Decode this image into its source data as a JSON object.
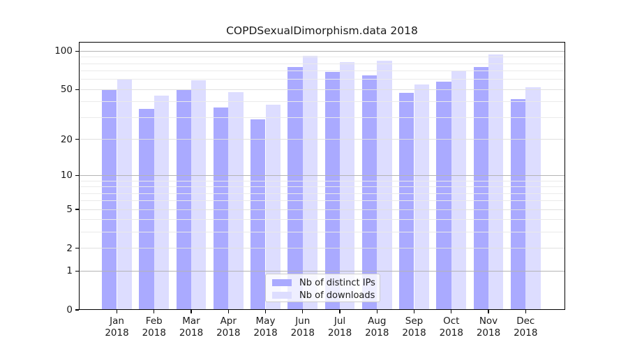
{
  "chart_data": {
    "type": "bar",
    "title": "COPDSexualDimorphism.data 2018",
    "categories": [
      "Jan",
      "Feb",
      "Mar",
      "Apr",
      "May",
      "Jun",
      "Jul",
      "Aug",
      "Sep",
      "Oct",
      "Nov",
      "Dec"
    ],
    "category_year": "2018",
    "series": [
      {
        "name": "Nb of distinct IPs",
        "color": "#aaaaff",
        "values": [
          50,
          35,
          50,
          36,
          29,
          75,
          69,
          65,
          47,
          58,
          75,
          42
        ]
      },
      {
        "name": "Nb of downloads",
        "color": "#ddddff",
        "values": [
          60,
          45,
          59,
          48,
          38,
          92,
          82,
          84,
          55,
          71,
          95,
          52
        ]
      }
    ],
    "y_scale": "log1p",
    "y_axis": {
      "tick_labels": [
        0,
        1,
        2,
        5,
        10,
        20,
        50,
        100
      ],
      "decade_ticks": [
        1,
        10,
        100
      ],
      "mid_ticks": [
        2,
        5,
        20,
        50
      ],
      "minor_ticks": [
        3,
        4,
        6,
        7,
        8,
        9,
        30,
        40,
        60,
        70,
        80,
        90
      ],
      "top_value": 118
    },
    "legend_position": "lower center",
    "grid": {
      "orientation": "horizontal",
      "decade_color": "#b4b4b4",
      "mid_color": "#e0e0e0",
      "minor_color": "#eaeaea",
      "over_bars": true
    },
    "axis_color": "#000000",
    "text_color": "#1a1a1a",
    "background_color": "#ffffff"
  }
}
